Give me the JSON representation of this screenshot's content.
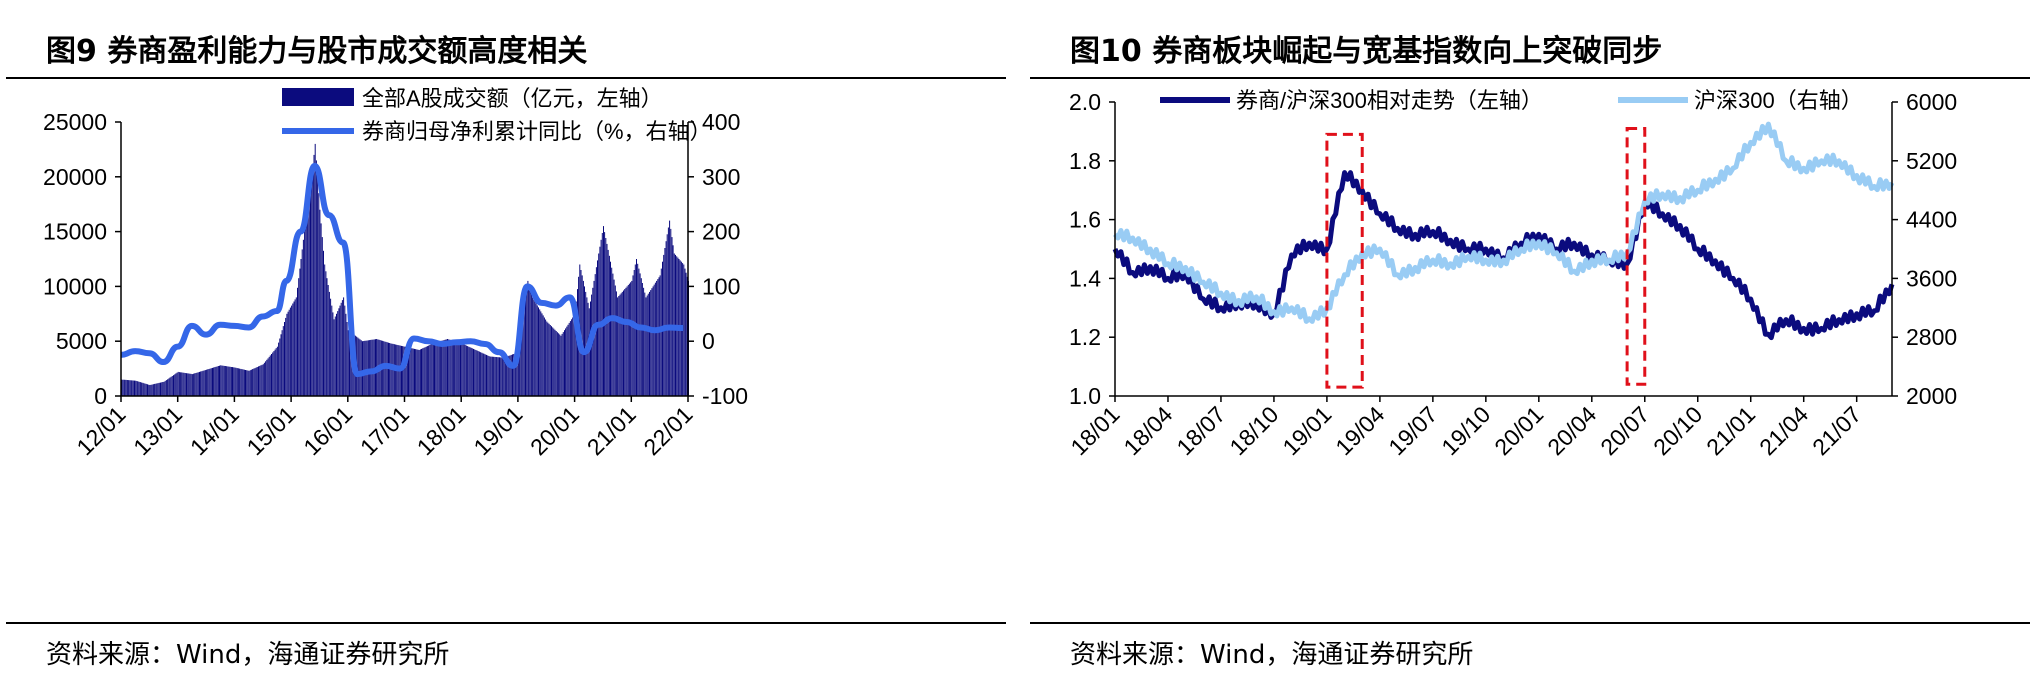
{
  "panels": [
    {
      "title": "图9  券商盈利能力与股市成交额高度相关",
      "source": "资料来源：Wind，海通证券研究所",
      "colors": {
        "bar": "#0b0b7e",
        "line": "#3567e8",
        "axis": "#000000"
      },
      "chart_data": {
        "type": "bar+line",
        "categories": [
          "12/01",
          "13/01",
          "14/01",
          "15/01",
          "16/01",
          "17/01",
          "18/01",
          "19/01",
          "20/01",
          "21/01",
          "22/01"
        ],
        "ylim_left": [
          0,
          25000
        ],
        "yticks_left": [
          "0",
          "5000",
          "10000",
          "15000",
          "20000",
          "25000"
        ],
        "ylim_right": [
          -100,
          400
        ],
        "yticks_right": [
          "-100",
          "0",
          "100",
          "200",
          "300",
          "400"
        ],
        "grid": false,
        "legend_position": "top",
        "series": [
          {
            "name": "全部A股成交额（亿元，左轴）",
            "type": "bar",
            "axis": "left",
            "x": [
              "12/01",
              "12/04",
              "12/07",
              "12/10",
              "13/01",
              "13/04",
              "13/07",
              "13/10",
              "14/01",
              "14/04",
              "14/07",
              "14/10",
              "14/12",
              "15/02",
              "15/04",
              "15/05",
              "15/06",
              "15/07",
              "15/08",
              "15/10",
              "15/12",
              "16/01",
              "16/04",
              "16/07",
              "16/10",
              "17/01",
              "17/04",
              "17/07",
              "17/10",
              "18/01",
              "18/04",
              "18/07",
              "18/10",
              "19/01",
              "19/02",
              "19/03",
              "19/04",
              "19/07",
              "19/10",
              "20/01",
              "20/02",
              "20/04",
              "20/07",
              "20/10",
              "21/01",
              "21/02",
              "21/04",
              "21/07",
              "21/09",
              "21/10",
              "21/12",
              "22/01"
            ],
            "values": [
              1500,
              1400,
              1000,
              1300,
              2200,
              2000,
              2400,
              2800,
              2600,
              2300,
              2900,
              4500,
              7500,
              9000,
              16000,
              19000,
              23000,
              17000,
              12000,
              7000,
              9000,
              6000,
              5000,
              5200,
              4800,
              4500,
              4200,
              4800,
              5200,
              4800,
              4200,
              3600,
              3500,
              4000,
              9000,
              10500,
              9000,
              6800,
              5500,
              7500,
              12000,
              8000,
              15500,
              9000,
              10500,
              12500,
              9000,
              11000,
              16000,
              13000,
              12000,
              10500
            ]
          },
          {
            "name": "券商归母净利累计同比（%，右轴）",
            "type": "line",
            "axis": "right",
            "x": [
              "12/01",
              "12/04",
              "12/07",
              "12/10",
              "13/01",
              "13/04",
              "13/07",
              "13/10",
              "14/01",
              "14/04",
              "14/07",
              "14/10",
              "14/12",
              "15/03",
              "15/06",
              "15/09",
              "15/12",
              "16/03",
              "16/06",
              "16/09",
              "16/12",
              "17/03",
              "17/06",
              "17/09",
              "17/12",
              "18/03",
              "18/06",
              "18/09",
              "18/12",
              "19/03",
              "19/06",
              "19/09",
              "19/12",
              "20/03",
              "20/06",
              "20/09",
              "20/12",
              "21/03",
              "21/06",
              "21/09",
              "21/12"
            ],
            "values": [
              -25,
              -18,
              -22,
              -38,
              -10,
              28,
              12,
              30,
              28,
              25,
              45,
              55,
              110,
              200,
              320,
              230,
              180,
              -60,
              -55,
              -45,
              -50,
              5,
              0,
              -5,
              -2,
              0,
              -5,
              -20,
              -45,
              100,
              70,
              65,
              80,
              -20,
              30,
              42,
              35,
              25,
              20,
              25,
              24
            ]
          }
        ]
      }
    },
    {
      "title": "图10 券商板块崛起与宽基指数向上突破同步",
      "source": "资料来源：Wind，海通证券研究所",
      "colors": {
        "dark": "#0b0b7e",
        "light": "#99ccf4",
        "highlight": "#e0101a"
      },
      "chart_data": {
        "type": "line",
        "categories": [
          "18/01",
          "18/04",
          "18/07",
          "18/10",
          "19/01",
          "19/04",
          "19/07",
          "19/10",
          "20/01",
          "20/04",
          "20/07",
          "20/10",
          "21/01",
          "21/04",
          "21/07"
        ],
        "ylim_left": [
          1.0,
          2.0
        ],
        "yticks_left": [
          "1.0",
          "1.2",
          "1.4",
          "1.6",
          "1.8",
          "2.0"
        ],
        "ylim_right": [
          2000,
          6000
        ],
        "yticks_right": [
          "2000",
          "2800",
          "3600",
          "4400",
          "5200",
          "6000"
        ],
        "grid": false,
        "legend_position": "top",
        "highlight_boxes": [
          {
            "x_start": "19/01",
            "x_end": "19/03",
            "y_start": 1.03,
            "y_end": 1.89
          },
          {
            "x_start": "20/06",
            "x_end": "20/07",
            "y_start": 1.04,
            "y_end": 1.91
          }
        ],
        "series": [
          {
            "name": "券商/沪深300相对走势（左轴）",
            "axis": "left",
            "x": [
              "18/01",
              "18/02",
              "18/03",
              "18/04",
              "18/05",
              "18/06",
              "18/07",
              "18/08",
              "18/09",
              "18/10",
              "18/11",
              "18/12",
              "19/01",
              "19/02",
              "19/03",
              "19/04",
              "19/05",
              "19/06",
              "19/07",
              "19/08",
              "19/09",
              "19/10",
              "19/11",
              "19/12",
              "20/01",
              "20/02",
              "20/03",
              "20/04",
              "20/05",
              "20/06",
              "20/07",
              "20/08",
              "20/09",
              "20/10",
              "20/11",
              "20/12",
              "21/01",
              "21/02",
              "21/03",
              "21/04",
              "21/05",
              "21/06",
              "21/07",
              "21/08",
              "21/09"
            ],
            "values": [
              1.5,
              1.42,
              1.44,
              1.4,
              1.42,
              1.33,
              1.3,
              1.32,
              1.31,
              1.28,
              1.48,
              1.52,
              1.5,
              1.76,
              1.7,
              1.62,
              1.57,
              1.55,
              1.56,
              1.53,
              1.5,
              1.5,
              1.47,
              1.52,
              1.55,
              1.5,
              1.52,
              1.48,
              1.46,
              1.45,
              1.66,
              1.62,
              1.58,
              1.5,
              1.46,
              1.4,
              1.33,
              1.21,
              1.26,
              1.23,
              1.23,
              1.26,
              1.28,
              1.29,
              1.38
            ]
          },
          {
            "name": "沪深300（右轴）",
            "axis": "right",
            "x": [
              "18/01",
              "18/02",
              "18/03",
              "18/04",
              "18/05",
              "18/06",
              "18/07",
              "18/08",
              "18/09",
              "18/10",
              "18/11",
              "18/12",
              "19/01",
              "19/02",
              "19/03",
              "19/04",
              "19/05",
              "19/06",
              "19/07",
              "19/08",
              "19/09",
              "19/10",
              "19/11",
              "19/12",
              "20/01",
              "20/02",
              "20/03",
              "20/04",
              "20/05",
              "20/06",
              "20/07",
              "20/08",
              "20/09",
              "20/10",
              "20/11",
              "20/12",
              "21/01",
              "21/02",
              "21/03",
              "21/04",
              "21/05",
              "21/06",
              "21/07",
              "21/08",
              "21/09"
            ],
            "values": [
              4200,
              4150,
              4000,
              3800,
              3750,
              3550,
              3400,
              3300,
              3350,
              3150,
              3200,
              3050,
              3200,
              3650,
              3950,
              4000,
              3650,
              3750,
              3850,
              3800,
              3900,
              3850,
              3850,
              4000,
              4100,
              3950,
              3700,
              3850,
              3850,
              3950,
              4650,
              4750,
              4700,
              4800,
              4950,
              5100,
              5450,
              5700,
              5200,
              5100,
              5200,
              5200,
              5000,
              4850,
              4900
            ]
          }
        ]
      }
    }
  ]
}
